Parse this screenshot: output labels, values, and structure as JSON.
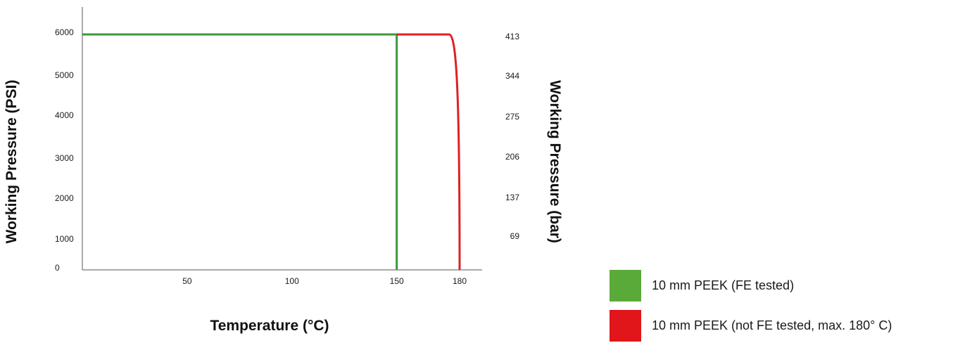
{
  "chart_data": {
    "type": "line",
    "xlabel": "Temperature (°C)",
    "ylabel": "Working Pressure (PSI)",
    "y2label": "Working Pressure (bar)",
    "x_ticks": [
      50,
      100,
      150,
      180
    ],
    "y_ticks": [
      0,
      1000,
      2000,
      3000,
      4000,
      5000,
      6000
    ],
    "y2_ticks": [
      69,
      137,
      206,
      275,
      344,
      413
    ],
    "xlim": [
      0,
      205
    ],
    "ylim": [
      0,
      6000
    ],
    "grid": false,
    "legend_position": "bottom-right",
    "series": [
      {
        "name": "10 mm PEEK (FE tested)",
        "color": "#3a9a3a",
        "points": [
          [
            0,
            5900
          ],
          [
            150,
            5900
          ],
          [
            150,
            0
          ]
        ]
      },
      {
        "name": "10 mm PEEK (not FE tested, max. 180° C)",
        "color": "#e02020",
        "points": [
          [
            150,
            5900
          ],
          [
            175,
            5900
          ],
          [
            177,
            5800
          ],
          [
            178,
            5500
          ],
          [
            179,
            4500
          ],
          [
            179.5,
            3000
          ],
          [
            180,
            1500
          ],
          [
            180,
            0
          ]
        ]
      }
    ]
  },
  "legend": {
    "items": [
      {
        "label": "10 mm PEEK (FE tested)",
        "color": "#5aaa3a"
      },
      {
        "label": "10 mm PEEK (not FE tested, max. 180° C)",
        "color": "#e0161b"
      }
    ]
  }
}
